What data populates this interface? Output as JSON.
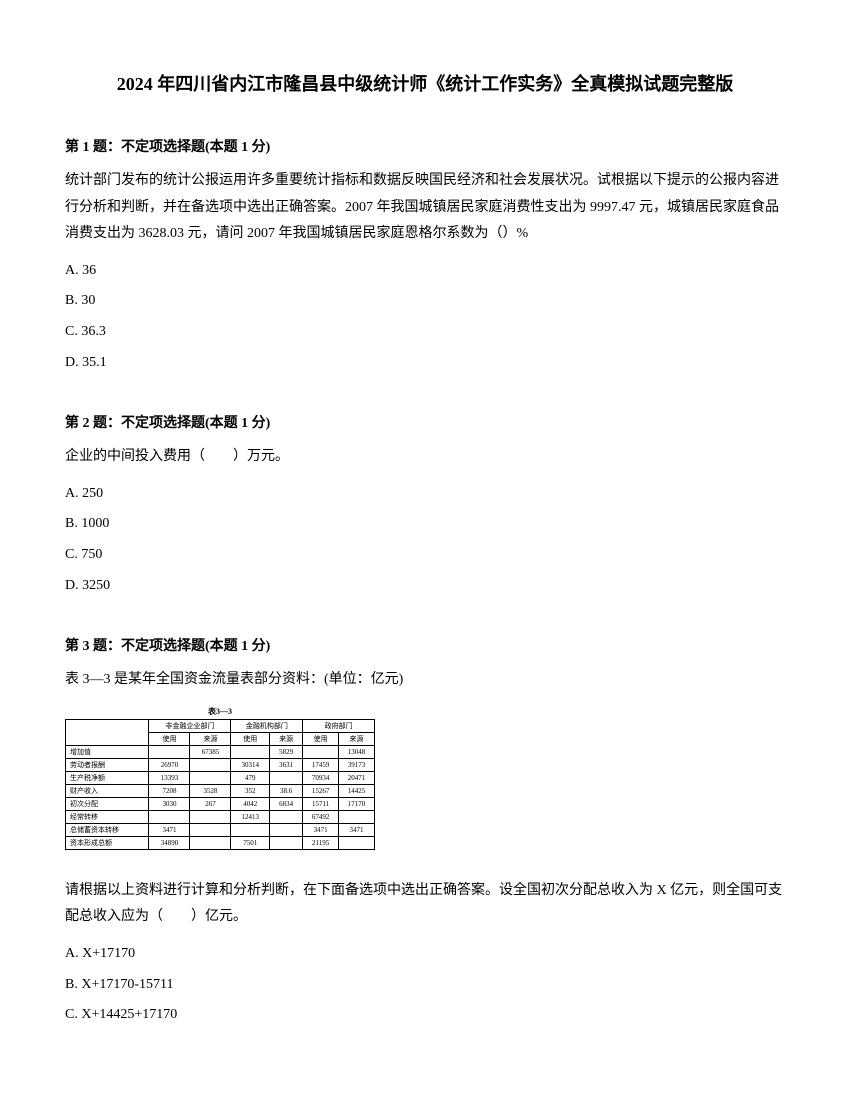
{
  "title": "2024 年四川省内江市隆昌县中级统计师《统计工作实务》全真模拟试题完整版",
  "q1": {
    "header": "第 1 题：不定项选择题(本题 1 分)",
    "body": "统计部门发布的统计公报运用许多重要统计指标和数据反映国民经济和社会发展状况。试根据以下提示的公报内容进行分析和判断，并在备选项中选出正确答案。2007 年我国城镇居民家庭消费性支出为 9997.47 元，城镇居民家庭食品消费支出为 3628.03 元，请问 2007 年我国城镇居民家庭恩格尔系数为（）%",
    "a": "A. 36",
    "b": "B. 30",
    "c": "C. 36.3",
    "d": "D. 35.1"
  },
  "q2": {
    "header": "第 2 题：不定项选择题(本题 1 分)",
    "body": "企业的中间投入费用（　　）万元。",
    "a": "A. 250",
    "b": "B. 1000",
    "c": "C. 750",
    "d": "D. 3250"
  },
  "q3": {
    "header": "第 3 题：不定项选择题(本题 1 分)",
    "intro": "表 3—3 是某年全国资金流量表部分资料：(单位：亿元)",
    "tableTitle": "表3—3",
    "table": {
      "headers": {
        "group1": "非金融企业部门",
        "group2": "金融机构部门",
        "group3": "政府部门",
        "use": "使用",
        "source": "来源",
        "use2": "使用",
        "source2": "来源",
        "use3": "使用",
        "source3": "来源"
      },
      "rows": [
        {
          "label": "增加值",
          "c1": "",
          "c2": "67385",
          "c3": "",
          "c4": "5829",
          "c5": "",
          "c6": "13048"
        },
        {
          "label": "劳动者报酬",
          "c1": "26970",
          "c2": "",
          "c3": "30314",
          "c4": "3631",
          "c5": "17459",
          "c6": "39173"
        },
        {
          "label": "生产税净额",
          "c1": "13393",
          "c2": "",
          "c3": "479",
          "c4": "",
          "c5": "70934",
          "c6": "20471"
        },
        {
          "label": "财产收入",
          "c1": "7208",
          "c2": "3528",
          "c3": "352",
          "c4": "38.6",
          "c5": "15267",
          "c6": "14425"
        },
        {
          "label": "初次分配",
          "c1": "3030",
          "c2": "267",
          "c3": "4042",
          "c4": "6834",
          "c5": "15711",
          "c6": "17170"
        },
        {
          "label": "经常转移",
          "c1": "",
          "c2": "",
          "c3": "12413",
          "c4": "",
          "c5": "67492",
          "c6": ""
        },
        {
          "label": "总储蓄资本转移",
          "c1": "3471",
          "c2": "",
          "c3": "",
          "c4": "",
          "c5": "3471",
          "c6": "3471"
        },
        {
          "label": "资本形成总额",
          "c1": "34890",
          "c2": "",
          "c3": "7501",
          "c4": "",
          "c5": "21195",
          "c6": ""
        }
      ]
    },
    "body2": "请根据以上资料进行计算和分析判断，在下面备选项中选出正确答案。设全国初次分配总收入为 X 亿元，则全国可支配总收入应为（　　）亿元。",
    "a": "A. X+17170",
    "b": "B. X+17170-15711",
    "c": "C. X+14425+17170"
  }
}
